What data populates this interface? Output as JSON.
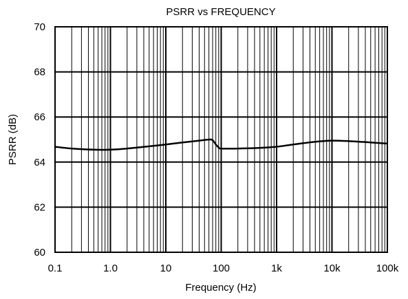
{
  "chart_data": {
    "type": "line",
    "title": "PSRR vs FREQUENCY",
    "xlabel": "Frequency (Hz)",
    "ylabel": "PSRR (dB)",
    "xscale": "log",
    "xlim": [
      0.1,
      100000
    ],
    "ylim": [
      60,
      70
    ],
    "grid": true,
    "x_ticks": [
      {
        "value": 0.1,
        "label": "0.1"
      },
      {
        "value": 1,
        "label": "1.0"
      },
      {
        "value": 10,
        "label": "10"
      },
      {
        "value": 100,
        "label": "100"
      },
      {
        "value": 1000,
        "label": "1k"
      },
      {
        "value": 10000,
        "label": "10k"
      },
      {
        "value": 100000,
        "label": "100k"
      }
    ],
    "y_ticks": [
      {
        "value": 60,
        "label": "60"
      },
      {
        "value": 62,
        "label": "62"
      },
      {
        "value": 64,
        "label": "64"
      },
      {
        "value": 66,
        "label": "66"
      },
      {
        "value": 68,
        "label": "68"
      },
      {
        "value": 70,
        "label": "70"
      }
    ],
    "series": [
      {
        "color": "#000000",
        "x": [
          0.1,
          0.2,
          0.5,
          1,
          2,
          5,
          10,
          20,
          40,
          60,
          70,
          80,
          90,
          100,
          200,
          500,
          1000,
          2000,
          5000,
          10000,
          20000,
          50000,
          100000
        ],
        "y": [
          64.68,
          64.6,
          64.55,
          64.55,
          64.6,
          64.7,
          64.78,
          64.87,
          64.95,
          65.0,
          64.97,
          64.78,
          64.65,
          64.6,
          64.6,
          64.63,
          64.68,
          64.78,
          64.9,
          64.95,
          64.93,
          64.87,
          64.82
        ]
      }
    ]
  }
}
